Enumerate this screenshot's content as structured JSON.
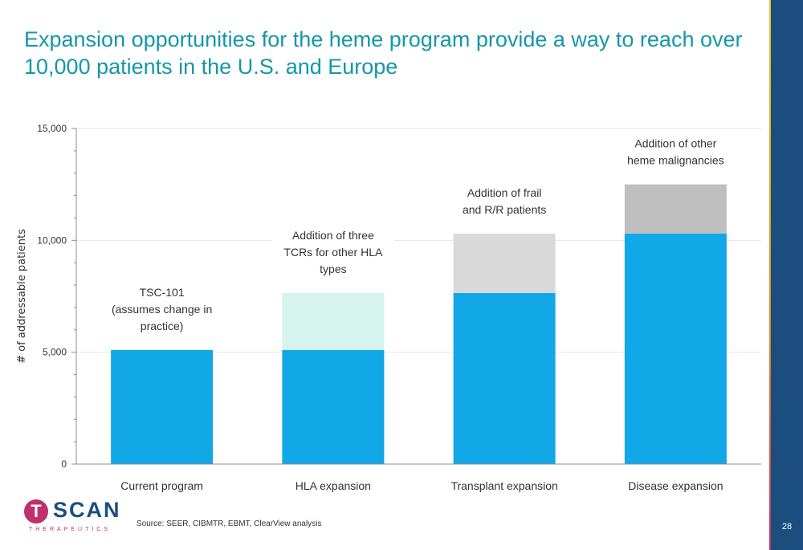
{
  "title_lines": [
    "Expansion opportunities for the heme program provide a way to reach over",
    "10,000 patients in the U.S. and Europe"
  ],
  "source": "Source: SEER, CIBMTR, EBMT, ClearView analysis",
  "page_number": "28",
  "logo": {
    "word": "SCAN",
    "mark_letter": "T",
    "subtitle": "THERAPEUTICS"
  },
  "colors": {
    "title": "#1497a8",
    "base": "#12a8e8",
    "hla": "#d5f4ee",
    "transplant": "#d9d9d9",
    "disease": "#bfbfbf",
    "sidebar": "#1b4e7e"
  },
  "chart_data": {
    "type": "bar",
    "stacked": true,
    "categories": [
      "Current program",
      "HLA expansion",
      "Transplant expansion",
      "Disease expansion"
    ],
    "ylabel": "# of addressable patients",
    "ylim": [
      0,
      15000
    ],
    "yticks": [
      0,
      5000,
      10000,
      15000
    ],
    "ytick_labels": [
      "0",
      "5,000",
      "10,000",
      "15,000"
    ],
    "grid": true,
    "segments": [
      {
        "category_index": 0,
        "base": 0,
        "value": 5100,
        "color": "#12a8e8"
      },
      {
        "category_index": 1,
        "base": 0,
        "value": 5100,
        "color": "#12a8e8"
      },
      {
        "category_index": 1,
        "base": 5100,
        "value": 2550,
        "color": "#d5f4ee"
      },
      {
        "category_index": 2,
        "base": 0,
        "value": 7650,
        "color": "#12a8e8"
      },
      {
        "category_index": 2,
        "base": 7650,
        "value": 2650,
        "color": "#d9d9d9"
      },
      {
        "category_index": 3,
        "base": 0,
        "value": 10300,
        "color": "#12a8e8"
      },
      {
        "category_index": 3,
        "base": 10300,
        "value": 2200,
        "color": "#bfbfbf"
      }
    ],
    "annotations": [
      {
        "category_index": 0,
        "lines": [
          "TSC-101",
          "(assumes change in",
          "practice)"
        ]
      },
      {
        "category_index": 1,
        "lines": [
          "Addition of three",
          "TCRs for other HLA",
          "types"
        ]
      },
      {
        "category_index": 2,
        "lines": [
          "Addition of frail",
          "and R/R patients"
        ]
      },
      {
        "category_index": 3,
        "lines": [
          "Addition of other",
          "heme malignancies"
        ]
      }
    ]
  }
}
